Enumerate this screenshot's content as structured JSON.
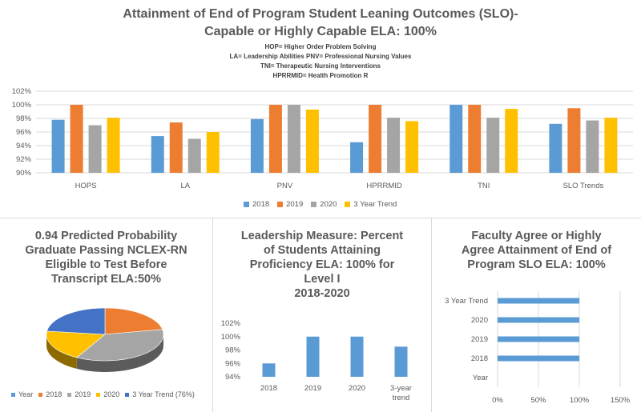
{
  "main": {
    "title_line1": "Attainment of End of Program Student Leaning Outcomes (SLO)-",
    "title_line2": "Capable or Highly Capable  ELA: 100%",
    "sub1": "HOP= Higher Order Problem Solving",
    "sub2": "LA= Leadership Abilities   PNV= Professional Nursing Values",
    "sub3": "TNI= Therapeutic Nursing Interventions",
    "sub4": "HPRRMID= Health Promotion R"
  },
  "colors": {
    "c2018": "#5b9bd5",
    "c2019": "#ed7d31",
    "c2020": "#a5a5a5",
    "c3yr": "#ffc000",
    "grid": "#d9d9d9"
  },
  "chart_data": [
    {
      "type": "bar",
      "categories": [
        "HOPS",
        "LA",
        "PNV",
        "HPRRMID",
        "TNI",
        "SLO Trends"
      ],
      "series": [
        {
          "name": "2018",
          "values": [
            97.8,
            95.4,
            97.9,
            94.5,
            100,
            97.2
          ]
        },
        {
          "name": "2019",
          "values": [
            100,
            97.4,
            100,
            100,
            100,
            99.5
          ]
        },
        {
          "name": "2020",
          "values": [
            97,
            95,
            100,
            98.1,
            98.1,
            97.7
          ]
        },
        {
          "name": "3 Year Trend",
          "values": [
            98.1,
            96,
            99.3,
            97.6,
            99.4,
            98.1
          ]
        }
      ],
      "yticks": [
        "90%",
        "92%",
        "94%",
        "96%",
        "98%",
        "100%",
        "102%"
      ],
      "ylim": [
        90,
        102
      ],
      "legend": [
        "2018",
        "2019",
        "2020",
        "3 Year Trend"
      ]
    },
    {
      "type": "pie",
      "title_line1": "0.94 Predicted Probability",
      "title_line2": "Graduate Passing NCLEX-RN",
      "title_line3": "Eligible to Test Before",
      "title_line4": "Transcript  ELA:50%",
      "slices": [
        {
          "name": "Year",
          "value": 0
        },
        {
          "name": "2018",
          "value": 22
        },
        {
          "name": "2019",
          "value": 36
        },
        {
          "name": "2020",
          "value": 19
        },
        {
          "name": "3 Year Trend (76%)",
          "value": 23
        }
      ],
      "slice_colors": [
        "#5b9bd5",
        "#ed7d31",
        "#a5a5a5",
        "#ffc000",
        "#4472c4"
      ],
      "legend": [
        "Year",
        "2018",
        "2019",
        "2020",
        "3 Year Trend (76%)"
      ]
    },
    {
      "type": "bar",
      "title_line1": "Leadership Measure: Percent",
      "title_line2": "of Students Attaining",
      "title_line3": "Proficiency ELA: 100% for",
      "title_line4": "Level I",
      "title_line5": "2018-2020",
      "categories": [
        "2018",
        "2019",
        "2020",
        "3-year trend"
      ],
      "category_line2": [
        "",
        "",
        "",
        "trend"
      ],
      "category_line1": [
        "2018",
        "2019",
        "2020",
        "3-year"
      ],
      "values": [
        96,
        100,
        100,
        98.5
      ],
      "yticks": [
        "94%",
        "96%",
        "98%",
        "100%",
        "102%"
      ],
      "ylim": [
        94,
        102
      ]
    },
    {
      "type": "bar",
      "orientation": "horizontal",
      "title_line1": "Faculty Agree or Highly",
      "title_line2": "Agree Attainment of End of",
      "title_line3": "Program SLO    ELA: 100%",
      "categories": [
        "3 Year Trend",
        "2020",
        "2019",
        "2018",
        "Year"
      ],
      "values": [
        100,
        100,
        100,
        100,
        0
      ],
      "xticks": [
        "0%",
        "50%",
        "100%",
        "150%"
      ],
      "xlim": [
        0,
        150
      ]
    }
  ]
}
